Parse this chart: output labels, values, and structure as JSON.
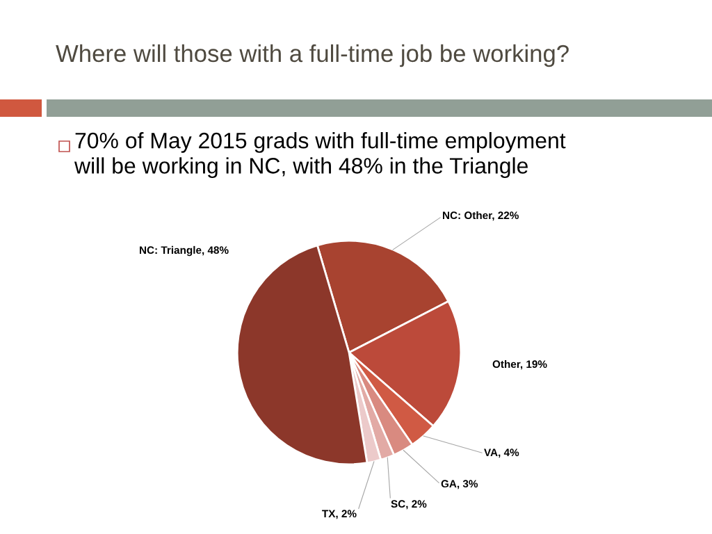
{
  "chart_data": {
    "type": "pie",
    "title": "Where will those with a full-time job be working?",
    "subtitle": "70% of May 2015 grads with full-time employment\nwill be working in NC, with 48% in the Triangle",
    "categories": [
      "NC: Other",
      "Other",
      "VA",
      "GA",
      "SC",
      "TX",
      "NC: Triangle"
    ],
    "values": [
      22,
      19,
      4,
      3,
      2,
      2,
      48
    ],
    "colors": [
      "#a84330",
      "#bc4a3a",
      "#d05a44",
      "#d98a80",
      "#e2aaa5",
      "#eccaca",
      "#8c372a"
    ],
    "value_labels": [
      "22%",
      "19%",
      "4%",
      "3%",
      "2%",
      "2%",
      "48%"
    ]
  }
}
